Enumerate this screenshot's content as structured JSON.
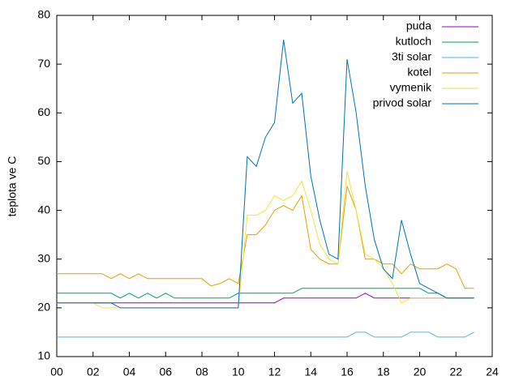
{
  "chart_data": {
    "type": "line",
    "ylabel": "teplota ve C",
    "x": [
      0,
      0.5,
      1,
      1.5,
      2,
      2.5,
      3,
      3.5,
      4,
      4.5,
      5,
      5.5,
      6,
      6.5,
      7,
      7.5,
      8,
      8.5,
      9,
      9.5,
      10,
      10.5,
      11,
      11.5,
      12,
      12.5,
      13,
      13.5,
      14,
      14.5,
      15,
      15.5,
      16,
      16.5,
      17,
      17.5,
      18,
      18.5,
      19,
      19.5,
      20,
      20.5,
      21,
      21.5,
      22,
      22.5,
      23
    ],
    "xlim": [
      0,
      24
    ],
    "xticks": [
      {
        "value": 0,
        "label": "00"
      },
      {
        "value": 2,
        "label": "02"
      },
      {
        "value": 4,
        "label": "04"
      },
      {
        "value": 6,
        "label": "06"
      },
      {
        "value": 8,
        "label": "08"
      },
      10,
      12,
      14,
      16,
      18,
      20,
      22,
      24
    ],
    "ylim": [
      10,
      80
    ],
    "yticks": [
      10,
      20,
      30,
      40,
      50,
      60,
      70,
      80
    ],
    "grid": false,
    "legend": "top-right",
    "series": [
      {
        "name": "puda",
        "color": "#9400d3",
        "values": [
          21,
          21,
          21,
          21,
          21,
          21,
          21,
          21,
          21,
          21,
          21,
          21,
          21,
          21,
          21,
          21,
          21,
          21,
          21,
          21,
          21,
          21,
          21,
          21,
          21,
          22,
          22,
          22,
          22,
          22,
          22,
          22,
          22,
          22,
          23,
          22,
          22,
          22,
          22,
          22,
          22,
          22,
          22,
          22,
          22,
          22,
          22
        ]
      },
      {
        "name": "kutloch",
        "color": "#009e73",
        "values": [
          23,
          23,
          23,
          23,
          23,
          23,
          23,
          22,
          23,
          22,
          23,
          22,
          23,
          22,
          22,
          22,
          22,
          22,
          22,
          22,
          23,
          23,
          23,
          23,
          23,
          23,
          23,
          24,
          24,
          24,
          24,
          24,
          24,
          24,
          24,
          24,
          24,
          24,
          24,
          24,
          24,
          23,
          23,
          22,
          22,
          22,
          22
        ]
      },
      {
        "name": "3ti solar",
        "color": "#56b4e9",
        "values": [
          14,
          14,
          14,
          14,
          14,
          14,
          14,
          14,
          14,
          14,
          14,
          14,
          14,
          14,
          14,
          14,
          14,
          14,
          14,
          14,
          14,
          14,
          14,
          14,
          14,
          14,
          14,
          14,
          14,
          14,
          14,
          14,
          14,
          15,
          15,
          14,
          14,
          14,
          14,
          15,
          15,
          15,
          14,
          14,
          14,
          14,
          15
        ]
      },
      {
        "name": "kotel",
        "color": "#e69f00",
        "values": [
          27,
          27,
          27,
          27,
          27,
          27,
          26,
          27,
          26,
          27,
          26,
          26,
          26,
          26,
          26,
          26,
          26,
          24.5,
          25,
          26,
          25,
          35,
          35,
          37,
          40,
          41,
          40,
          43,
          32,
          30,
          29,
          29,
          45,
          40,
          30,
          30,
          29,
          29,
          27,
          29,
          28,
          28,
          28,
          29,
          28,
          24,
          24
        ]
      },
      {
        "name": "vymenik",
        "color": "#f0e442",
        "values": [
          21,
          21,
          21,
          21,
          21,
          20,
          20,
          20,
          20,
          20,
          20,
          20,
          20,
          20,
          20,
          20,
          20,
          20,
          20,
          20,
          20,
          39,
          39,
          40,
          43,
          42,
          43,
          46,
          40,
          33,
          30,
          29,
          48,
          40,
          31,
          30,
          28,
          25,
          21,
          22,
          22,
          22,
          22,
          22,
          22,
          22,
          22
        ]
      },
      {
        "name": "privod solar",
        "color": "#0072b2",
        "values": [
          21,
          21,
          21,
          21,
          21,
          21,
          21,
          20,
          20,
          20,
          20,
          20,
          20,
          20,
          20,
          20,
          20,
          20,
          20,
          20,
          20,
          51,
          49,
          55,
          58,
          75,
          62,
          64,
          47,
          38,
          31,
          30,
          71,
          60,
          45,
          34,
          28,
          26,
          38,
          31,
          25,
          24,
          23,
          22,
          22,
          22,
          22
        ]
      }
    ]
  }
}
